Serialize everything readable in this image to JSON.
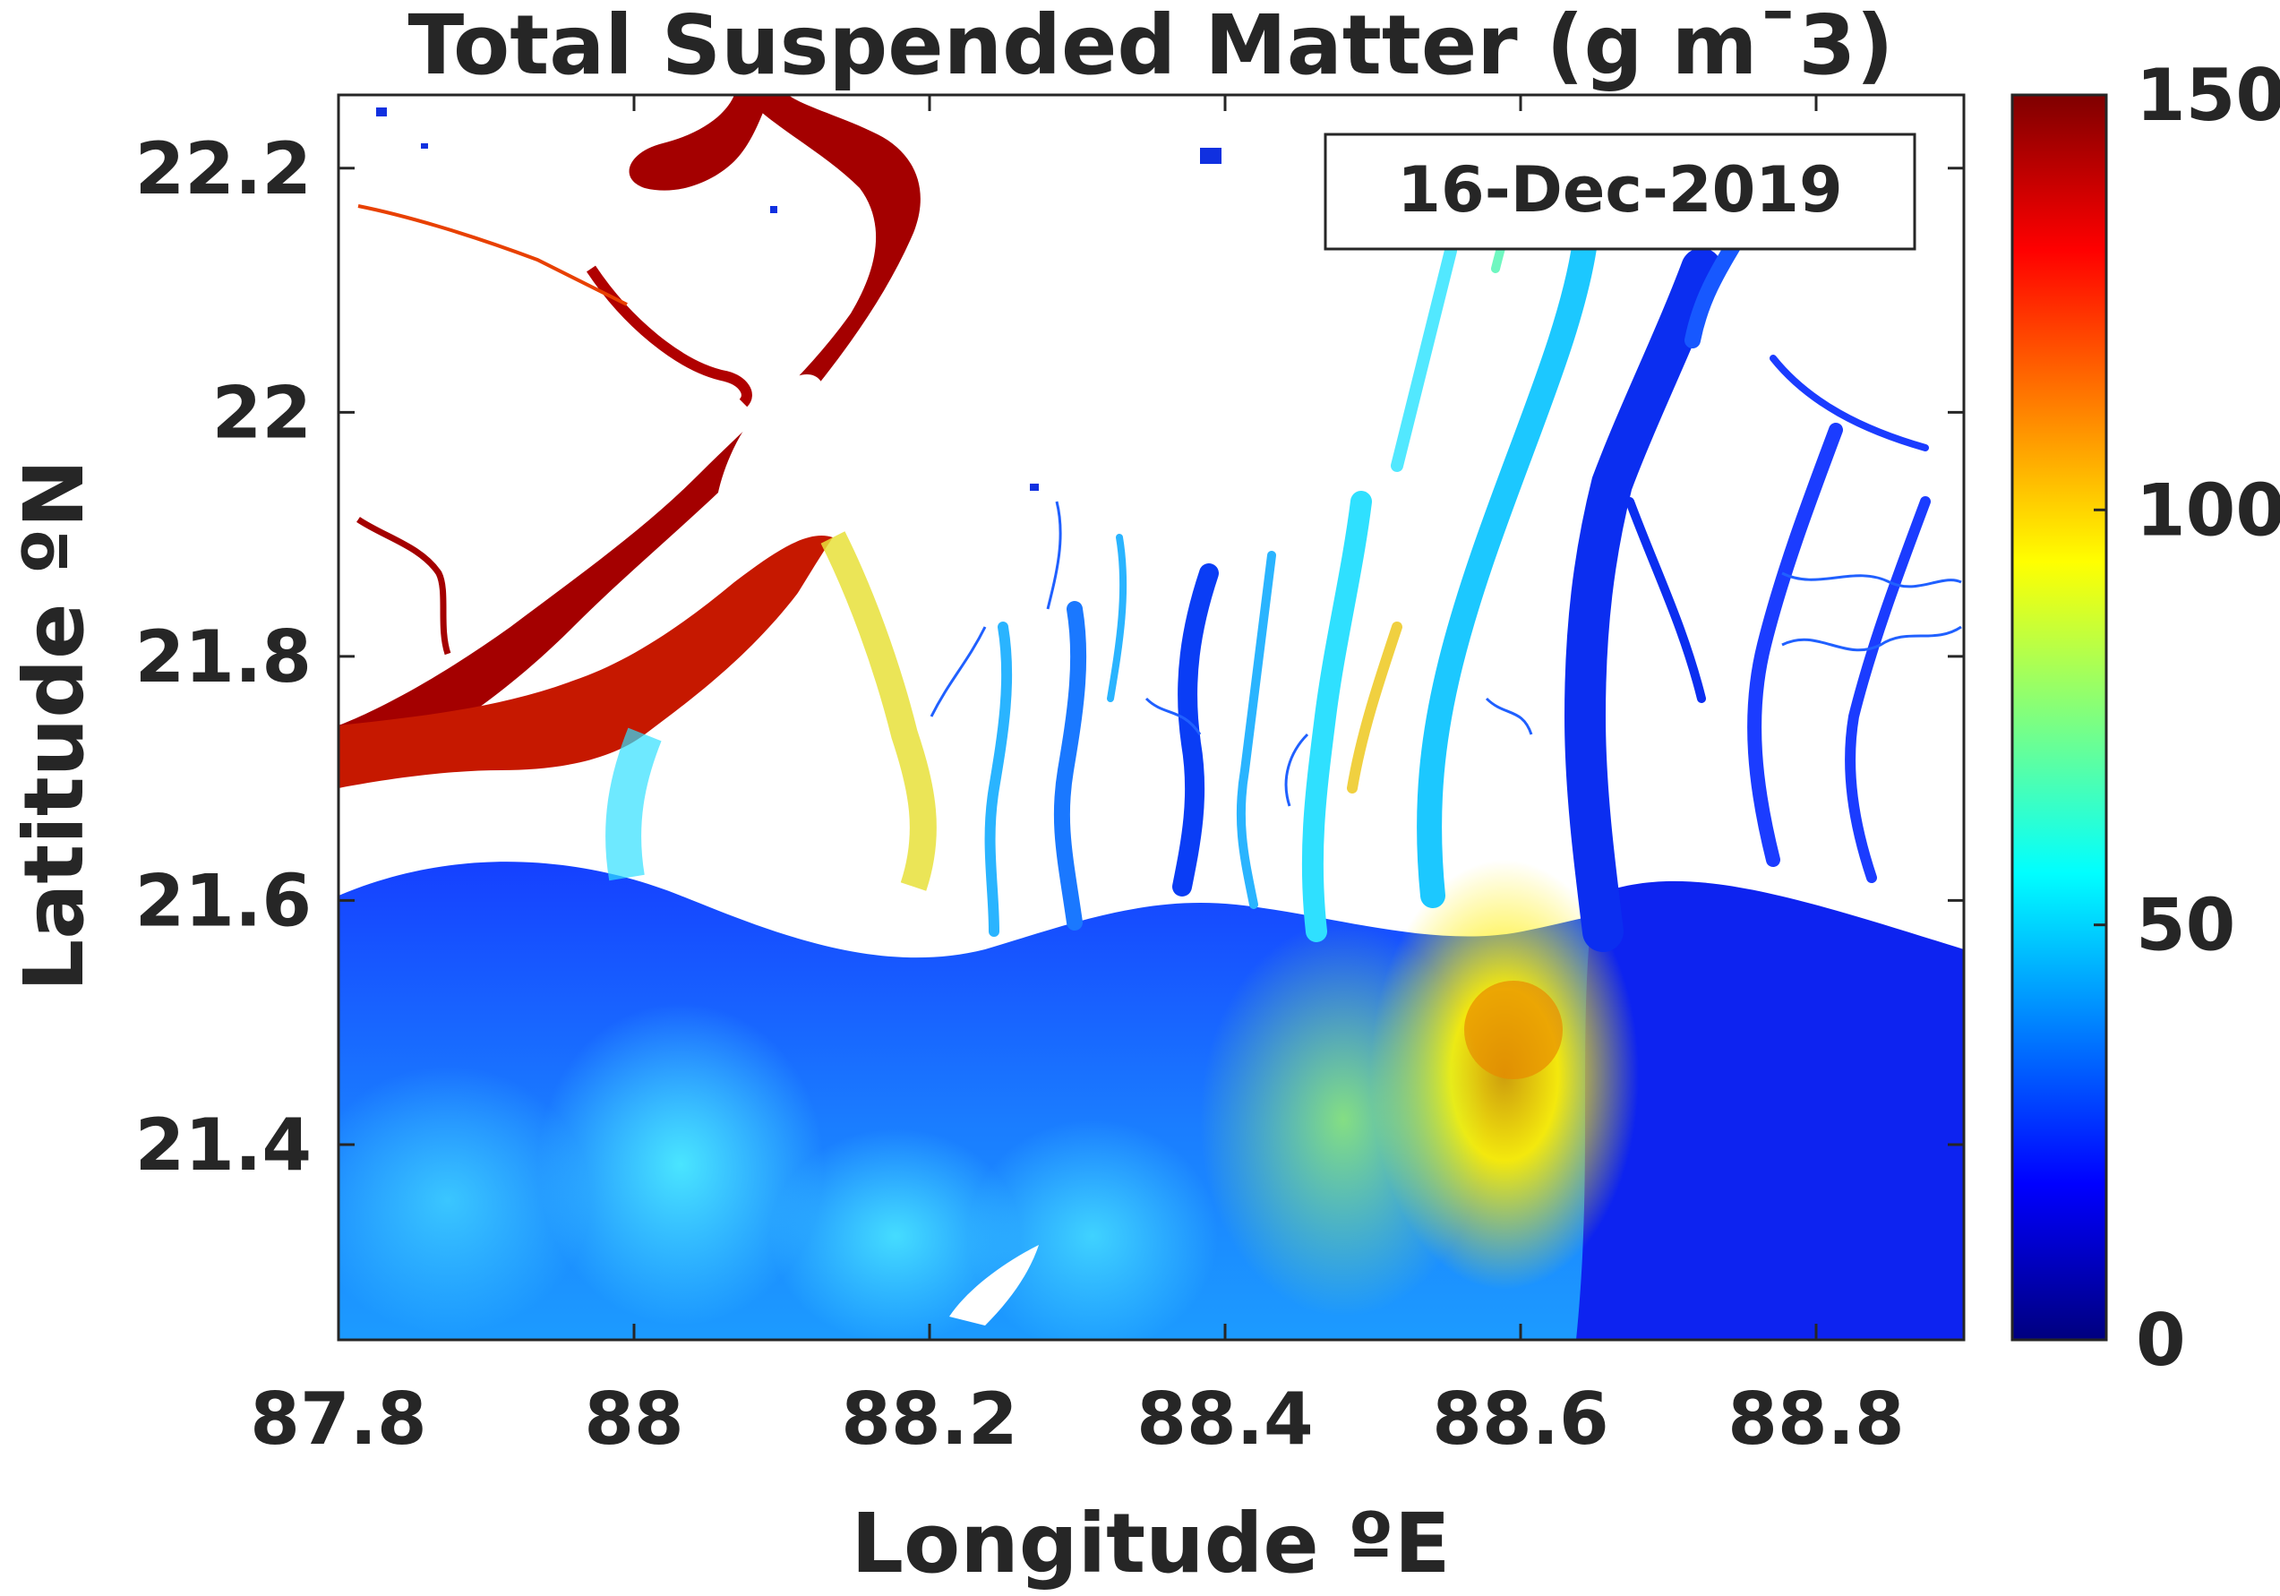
{
  "title": "Total Suspended Matter (g m¯3)",
  "date_label": "16-Dec-2019",
  "xlabel": "Longitude ºE",
  "ylabel": "Latitude ºN",
  "x_ticks": [
    {
      "value": 87.8,
      "label": "87.8"
    },
    {
      "value": 88.0,
      "label": "88"
    },
    {
      "value": 88.2,
      "label": "88.2"
    },
    {
      "value": 88.4,
      "label": "88.4"
    },
    {
      "value": 88.6,
      "label": "88.6"
    },
    {
      "value": 88.8,
      "label": "88.8"
    }
  ],
  "y_ticks": [
    {
      "value": 22.2,
      "label": "22.2"
    },
    {
      "value": 22.0,
      "label": "22"
    },
    {
      "value": 21.8,
      "label": "21.8"
    },
    {
      "value": 21.6,
      "label": "21.6"
    },
    {
      "value": 21.4,
      "label": "21.4"
    }
  ],
  "xlim": [
    87.8,
    88.9
  ],
  "ylim": [
    21.24,
    22.26
  ],
  "colorbar": {
    "min": 0,
    "max": 150,
    "ticks": [
      {
        "value": 150,
        "label": "150"
      },
      {
        "value": 100,
        "label": "100"
      },
      {
        "value": 50,
        "label": "50"
      },
      {
        "value": 0,
        "label": "0"
      }
    ],
    "colormap": "jet",
    "stops": [
      "#00007f",
      "#0000ff",
      "#007fff",
      "#00ffff",
      "#7fff7f",
      "#ffff00",
      "#ff7f00",
      "#ff0000",
      "#7f0000"
    ]
  },
  "colors": {
    "land": "#ffffff",
    "coastal_water": "#1a3cff",
    "offshore_water": "#0b1ee8",
    "high_turbidity": "#a20000",
    "medium_turbidity": "#ffd400",
    "low_turbidity": "#22c8ff"
  }
}
